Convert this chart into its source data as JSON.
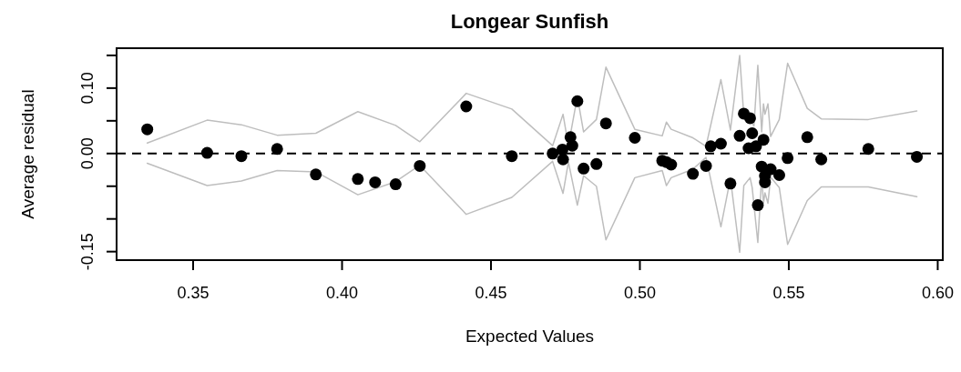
{
  "chart_data": {
    "type": "scatter",
    "title": "Longear Sunfish",
    "xlabel": "Expected Values",
    "ylabel": "Average residual",
    "xlim": [
      0.3243,
      0.6017
    ],
    "ylim": [
      -0.163,
      0.161
    ],
    "xticks": [
      {
        "value": 0.35,
        "label": "0.35"
      },
      {
        "value": 0.4,
        "label": "0.40"
      },
      {
        "value": 0.45,
        "label": "0.45"
      },
      {
        "value": 0.5,
        "label": "0.50"
      },
      {
        "value": 0.55,
        "label": "0.55"
      },
      {
        "value": 0.6,
        "label": "0.60"
      }
    ],
    "yticks": [
      {
        "value": -0.15,
        "label": "-0.15"
      },
      {
        "value": -0.1,
        "label": null
      },
      {
        "value": -0.05,
        "label": null
      },
      {
        "value": 0,
        "label": "0.00"
      },
      {
        "value": 0.05,
        "label": null
      },
      {
        "value": 0.1,
        "label": "0.10"
      },
      {
        "value": 0.15,
        "label": null
      }
    ],
    "grid": false,
    "marker": "circle",
    "ref_lines": [
      {
        "axis": "y",
        "value": 0,
        "color": "#000000",
        "line_style": "dashed"
      }
    ],
    "series": [
      {
        "type": "line",
        "color": "#bebebe",
        "marker": "none",
        "x": [
          0.3346,
          0.3547,
          0.3662,
          0.3782,
          0.3912,
          0.4053,
          0.418,
          0.4261,
          0.4417,
          0.457,
          0.4707,
          0.4742,
          0.476,
          0.479,
          0.4811,
          0.4854,
          0.4886,
          0.4983,
          0.5075,
          0.5089,
          0.5105,
          0.5178,
          0.5222,
          0.5272,
          0.5304,
          0.5335,
          0.5349,
          0.537,
          0.5383,
          0.5396,
          0.5409,
          0.5415,
          0.542,
          0.543,
          0.5439,
          0.5468,
          0.5496,
          0.5562,
          0.5609,
          0.5767,
          0.593
        ],
        "values": [
          0.016,
          0.051,
          0.044,
          0.028,
          0.031,
          0.064,
          0.043,
          0.018,
          0.092,
          0.068,
          0.012,
          0.06,
          0.012,
          0.087,
          0.033,
          0.052,
          0.132,
          0.037,
          0.027,
          0.048,
          0.037,
          0.024,
          0.011,
          0.113,
          0.036,
          0.15,
          0.057,
          0.052,
          0.042,
          0.135,
          0.033,
          0.076,
          0.06,
          0.076,
          0.026,
          0.052,
          0.138,
          0.069,
          0.053,
          0.052,
          0.065
        ]
      },
      {
        "type": "line",
        "color": "#bebebe",
        "marker": "none",
        "x": [
          0.3346,
          0.3547,
          0.3662,
          0.3782,
          0.3912,
          0.4053,
          0.418,
          0.4261,
          0.4417,
          0.457,
          0.4707,
          0.4742,
          0.476,
          0.479,
          0.4811,
          0.4854,
          0.4886,
          0.4983,
          0.5075,
          0.5089,
          0.5105,
          0.5178,
          0.5222,
          0.5272,
          0.5304,
          0.5335,
          0.5349,
          0.537,
          0.5377,
          0.5396,
          0.5409,
          0.5415,
          0.542,
          0.543,
          0.5439,
          0.5468,
          0.5496,
          0.5562,
          0.5609,
          0.5767,
          0.593
        ],
        "values": [
          -0.015,
          -0.049,
          -0.042,
          -0.026,
          -0.028,
          -0.063,
          -0.043,
          -0.018,
          -0.093,
          -0.067,
          -0.012,
          -0.061,
          -0.013,
          -0.079,
          -0.034,
          -0.05,
          -0.132,
          -0.037,
          -0.026,
          -0.049,
          -0.037,
          -0.024,
          -0.006,
          -0.112,
          -0.038,
          -0.151,
          -0.049,
          -0.037,
          -0.052,
          -0.136,
          -0.035,
          -0.076,
          -0.06,
          -0.076,
          -0.036,
          -0.052,
          -0.139,
          -0.072,
          -0.051,
          -0.051,
          -0.066
        ]
      },
      {
        "color": "#000000",
        "x": [
          0.3346,
          0.3547,
          0.3662,
          0.3782,
          0.3912,
          0.4053,
          0.4111,
          0.418,
          0.4261,
          0.4417,
          0.457,
          0.4707,
          0.474,
          0.4742,
          0.4767,
          0.4773,
          0.479,
          0.4811,
          0.4854,
          0.4886,
          0.4983,
          0.5075,
          0.5089,
          0.5105,
          0.5178,
          0.5222,
          0.5238,
          0.5272,
          0.5304,
          0.5335,
          0.5349,
          0.537,
          0.5377,
          0.5365,
          0.539,
          0.5415,
          0.5396,
          0.5409,
          0.542,
          0.542,
          0.5439,
          0.5468,
          0.5496,
          0.5562,
          0.5609,
          0.5767,
          0.593
        ],
        "values": [
          0.037,
          0.001,
          -0.004,
          0.007,
          -0.032,
          -0.039,
          -0.044,
          -0.047,
          -0.019,
          0.072,
          -0.004,
          0.0,
          0.006,
          -0.009,
          0.025,
          0.012,
          0.08,
          -0.023,
          -0.016,
          0.046,
          0.024,
          -0.011,
          -0.013,
          -0.017,
          -0.031,
          -0.019,
          0.011,
          0.015,
          -0.046,
          0.027,
          0.061,
          0.054,
          0.031,
          0.008,
          0.011,
          0.021,
          -0.079,
          -0.02,
          -0.034,
          -0.044,
          -0.024,
          -0.033,
          -0.007,
          0.025,
          -0.009,
          0.007,
          -0.005
        ]
      }
    ]
  }
}
